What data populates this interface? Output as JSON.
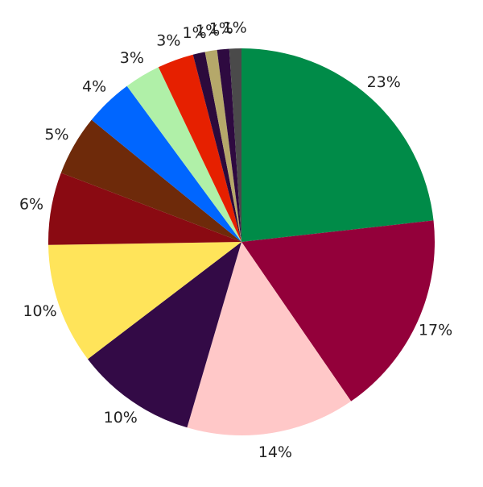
{
  "chart_data": {
    "type": "pie",
    "values": [
      23,
      17,
      14,
      10,
      10,
      6,
      5,
      4,
      3,
      3,
      1,
      1,
      1,
      1
    ],
    "value_labels": [
      "23%",
      "17%",
      "14%",
      "10%",
      "10%",
      "6%",
      "5%",
      "4%",
      "3%",
      "3%",
      "1%",
      "1%",
      "1%",
      "1%"
    ],
    "colors": [
      "#008b48",
      "#93003a",
      "#ffc8c8",
      "#330a46",
      "#ffe45a",
      "#8a0a12",
      "#6e2a0a",
      "#0066ff",
      "#b0f0a8",
      "#e62000",
      "#2c0a3c",
      "#b5a86a",
      "#2e0a40",
      "#4a4a4a"
    ]
  }
}
